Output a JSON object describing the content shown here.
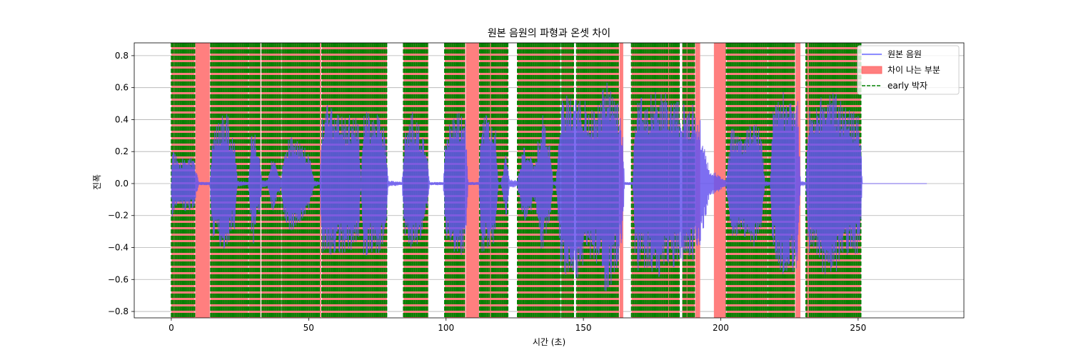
{
  "chart_data": {
    "type": "line",
    "title": "원본 음원의 파형과 온셋 차이",
    "xlabel": "시간 (초)",
    "ylabel": "진폭",
    "xlim": [
      -13.5,
      288.5
    ],
    "ylim": [
      -0.84,
      0.88
    ],
    "xticks": [
      0,
      50,
      100,
      150,
      200,
      250
    ],
    "xtick_labels": [
      "0",
      "50",
      "100",
      "150",
      "200",
      "250"
    ],
    "yticks": [
      0.8,
      0.6,
      0.4,
      0.2,
      0.0,
      -0.2,
      -0.4,
      -0.6,
      -0.8
    ],
    "ytick_labels": [
      "0.8",
      "0.6",
      "0.4",
      "0.2",
      "0.0",
      "−0.2",
      "−0.4",
      "−0.6",
      "−0.8"
    ],
    "grid": "horizontal",
    "legend_position": "top-right",
    "legend": [
      {
        "label": "원본 음원",
        "kind": "line",
        "color": "#6666ff"
      },
      {
        "label": "차이 나는 부분",
        "kind": "patch",
        "color": "#ff7f7f"
      },
      {
        "label": "early 박자",
        "kind": "dashed",
        "color": "#008000"
      }
    ],
    "colors": {
      "waveform": "#6655ee",
      "difference": "#ff7f7f",
      "early_beat": "#008000"
    },
    "difference_regions": [
      [
        0,
        8.5
      ],
      [
        8.7,
        14
      ],
      [
        14.2,
        28
      ],
      [
        28.2,
        32.5
      ],
      [
        32.8,
        40
      ],
      [
        40.2,
        54.5
      ],
      [
        54.8,
        78.5
      ],
      [
        84.5,
        93.5
      ],
      [
        99.5,
        107
      ],
      [
        107.2,
        112
      ],
      [
        112.2,
        122.5
      ],
      [
        126,
        141.5
      ],
      [
        142,
        146.5
      ],
      [
        147.5,
        163
      ],
      [
        163.2,
        164.5
      ],
      [
        167.5,
        185
      ],
      [
        186,
        190.5
      ],
      [
        190.7,
        192.5
      ],
      [
        197.5,
        202
      ],
      [
        202.2,
        217
      ],
      [
        217.2,
        227
      ],
      [
        227.2,
        229
      ],
      [
        231,
        251
      ]
    ],
    "early_beat_segments": [
      [
        0,
        0.8
      ],
      [
        1.3,
        8.5
      ],
      [
        14.3,
        28
      ],
      [
        28.2,
        32.3
      ],
      [
        33,
        40
      ],
      [
        40.3,
        54.2
      ],
      [
        54.8,
        78.5
      ],
      [
        84.5,
        93.5
      ],
      [
        99.5,
        107
      ],
      [
        112.2,
        116
      ],
      [
        116.5,
        122.5
      ],
      [
        126,
        128
      ],
      [
        128.3,
        141.5
      ],
      [
        142,
        146.5
      ],
      [
        147.5,
        163
      ],
      [
        167.5,
        176
      ],
      [
        176.3,
        181
      ],
      [
        181.3,
        185
      ],
      [
        186.2,
        187.5
      ],
      [
        188,
        190.5
      ],
      [
        202,
        217
      ],
      [
        217.2,
        227
      ],
      [
        231,
        231.6
      ],
      [
        232.2,
        251
      ]
    ],
    "waveform_envelope": [
      [
        0,
        0
      ],
      [
        0.3,
        0.26
      ],
      [
        1,
        0.22
      ],
      [
        3,
        0.12
      ],
      [
        5,
        0.19
      ],
      [
        8,
        0.17
      ],
      [
        10,
        0.01
      ],
      [
        14,
        0.01
      ],
      [
        15,
        0.33
      ],
      [
        18,
        0.42
      ],
      [
        20,
        0.49
      ],
      [
        22,
        0.28
      ],
      [
        23,
        0.32
      ],
      [
        24,
        0.02
      ],
      [
        28,
        0.01
      ],
      [
        29,
        0.28
      ],
      [
        30,
        0.39
      ],
      [
        31,
        0.22
      ],
      [
        32,
        0.2
      ],
      [
        33,
        0.03
      ],
      [
        35,
        0.02
      ],
      [
        37,
        0.2
      ],
      [
        38,
        0.12
      ],
      [
        40,
        0.03
      ],
      [
        41,
        0.22
      ],
      [
        43,
        0.3
      ],
      [
        46,
        0.28
      ],
      [
        50,
        0.2
      ],
      [
        52,
        0.02
      ],
      [
        54,
        0.01
      ],
      [
        55,
        0.47
      ],
      [
        57,
        0.5
      ],
      [
        60,
        0.44
      ],
      [
        63,
        0.43
      ],
      [
        66,
        0.43
      ],
      [
        68,
        0.42
      ],
      [
        69,
        0.01
      ],
      [
        70,
        0.46
      ],
      [
        72,
        0.45
      ],
      [
        74,
        0.44
      ],
      [
        76,
        0.45
      ],
      [
        78,
        0.31
      ],
      [
        79,
        0.02
      ],
      [
        84,
        0.01
      ],
      [
        85,
        0.33
      ],
      [
        88,
        0.46
      ],
      [
        91,
        0.33
      ],
      [
        93,
        0.2
      ],
      [
        94,
        0.01
      ],
      [
        99,
        0.01
      ],
      [
        100,
        0.35
      ],
      [
        103,
        0.43
      ],
      [
        106,
        0.46
      ],
      [
        107,
        0.44
      ],
      [
        108,
        0.01
      ],
      [
        112,
        0.01
      ],
      [
        113,
        0.46
      ],
      [
        116,
        0.42
      ],
      [
        118,
        0.36
      ],
      [
        119,
        0.01
      ],
      [
        120,
        0.01
      ],
      [
        122,
        0.22
      ],
      [
        123,
        0.03
      ],
      [
        126,
        0.02
      ],
      [
        128,
        0.23
      ],
      [
        130,
        0.23
      ],
      [
        132,
        0.11
      ],
      [
        135,
        0.45
      ],
      [
        138,
        0.22
      ],
      [
        139,
        0.01
      ],
      [
        140,
        0.02
      ],
      [
        142,
        0.56
      ],
      [
        145,
        0.6
      ],
      [
        148,
        0.59
      ],
      [
        150,
        0.53
      ],
      [
        153,
        0.46
      ],
      [
        156,
        0.53
      ],
      [
        158,
        0.7
      ],
      [
        160,
        0.64
      ],
      [
        162,
        0.54
      ],
      [
        164,
        0.42
      ],
      [
        165,
        0.01
      ],
      [
        168,
        0.01
      ],
      [
        169,
        0.56
      ],
      [
        172,
        0.53
      ],
      [
        175,
        0.56
      ],
      [
        178,
        0.59
      ],
      [
        182,
        0.55
      ],
      [
        185,
        0.52
      ],
      [
        188,
        0.48
      ],
      [
        190,
        0.5
      ],
      [
        192,
        0.45
      ],
      [
        194,
        0.26
      ],
      [
        196,
        0.07
      ],
      [
        198,
        0.07
      ],
      [
        200,
        0.04
      ],
      [
        202,
        0.02
      ],
      [
        204,
        0.37
      ],
      [
        207,
        0.3
      ],
      [
        210,
        0.36
      ],
      [
        213,
        0.43
      ],
      [
        215,
        0.27
      ],
      [
        216,
        0.02
      ],
      [
        218,
        0.01
      ],
      [
        219,
        0.45
      ],
      [
        222,
        0.58
      ],
      [
        225,
        0.55
      ],
      [
        228,
        0.55
      ],
      [
        229,
        0.02
      ],
      [
        231,
        0.01
      ],
      [
        232,
        0.45
      ],
      [
        235,
        0.5
      ],
      [
        238,
        0.6
      ],
      [
        241,
        0.62
      ],
      [
        244,
        0.5
      ],
      [
        247,
        0.47
      ],
      [
        250,
        0.44
      ],
      [
        251,
        0.32
      ],
      [
        251.5,
        0
      ],
      [
        275,
        0
      ]
    ]
  }
}
